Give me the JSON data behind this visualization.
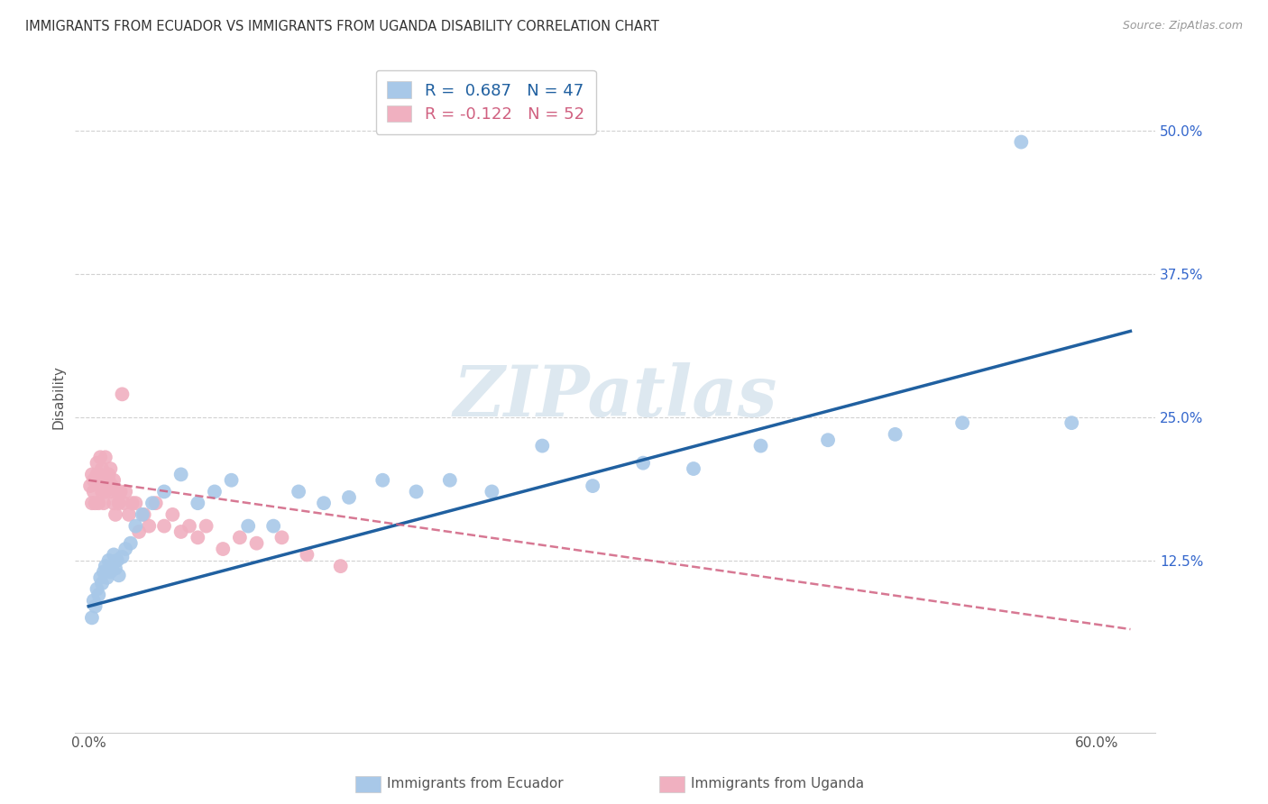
{
  "title": "IMMIGRANTS FROM ECUADOR VS IMMIGRANTS FROM UGANDA DISABILITY CORRELATION CHART",
  "source": "Source: ZipAtlas.com",
  "ylabel": "Disability",
  "x_ticks": [
    0.0,
    0.1,
    0.2,
    0.3,
    0.4,
    0.5,
    0.6
  ],
  "x_tick_labels": [
    "0.0%",
    "",
    "",
    "",
    "",
    "",
    "60.0%"
  ],
  "y_ticks": [
    0.0,
    0.125,
    0.25,
    0.375,
    0.5
  ],
  "y_tick_labels": [
    "",
    "12.5%",
    "25.0%",
    "37.5%",
    "50.0%"
  ],
  "xlim": [
    -0.008,
    0.635
  ],
  "ylim": [
    -0.025,
    0.56
  ],
  "ecuador_R": 0.687,
  "ecuador_N": 47,
  "uganda_R": -0.122,
  "uganda_N": 52,
  "ecuador_color": "#a8c8e8",
  "ecuador_line_color": "#2060a0",
  "uganda_color": "#f0b0c0",
  "uganda_line_color": "#d06080",
  "ecuador_x": [
    0.002,
    0.003,
    0.004,
    0.005,
    0.006,
    0.007,
    0.008,
    0.009,
    0.01,
    0.011,
    0.012,
    0.013,
    0.014,
    0.015,
    0.016,
    0.017,
    0.018,
    0.02,
    0.022,
    0.025,
    0.028,
    0.032,
    0.038,
    0.045,
    0.055,
    0.065,
    0.075,
    0.085,
    0.095,
    0.11,
    0.125,
    0.14,
    0.155,
    0.175,
    0.195,
    0.215,
    0.24,
    0.27,
    0.3,
    0.33,
    0.36,
    0.4,
    0.44,
    0.48,
    0.52,
    0.555,
    0.585
  ],
  "ecuador_y": [
    0.075,
    0.09,
    0.085,
    0.1,
    0.095,
    0.11,
    0.105,
    0.115,
    0.12,
    0.11,
    0.125,
    0.115,
    0.12,
    0.13,
    0.118,
    0.125,
    0.112,
    0.128,
    0.135,
    0.14,
    0.155,
    0.165,
    0.175,
    0.185,
    0.2,
    0.175,
    0.185,
    0.195,
    0.155,
    0.155,
    0.185,
    0.175,
    0.18,
    0.195,
    0.185,
    0.195,
    0.185,
    0.225,
    0.19,
    0.21,
    0.205,
    0.225,
    0.23,
    0.235,
    0.245,
    0.49,
    0.245
  ],
  "uganda_x": [
    0.001,
    0.002,
    0.002,
    0.003,
    0.003,
    0.004,
    0.005,
    0.005,
    0.006,
    0.006,
    0.007,
    0.007,
    0.008,
    0.008,
    0.009,
    0.009,
    0.01,
    0.01,
    0.011,
    0.012,
    0.012,
    0.013,
    0.013,
    0.014,
    0.015,
    0.015,
    0.016,
    0.017,
    0.018,
    0.019,
    0.02,
    0.021,
    0.022,
    0.024,
    0.026,
    0.028,
    0.03,
    0.033,
    0.036,
    0.04,
    0.045,
    0.05,
    0.055,
    0.06,
    0.065,
    0.07,
    0.08,
    0.09,
    0.1,
    0.115,
    0.13,
    0.15
  ],
  "uganda_y": [
    0.19,
    0.175,
    0.2,
    0.185,
    0.195,
    0.175,
    0.21,
    0.2,
    0.175,
    0.195,
    0.215,
    0.2,
    0.185,
    0.205,
    0.175,
    0.195,
    0.185,
    0.215,
    0.195,
    0.195,
    0.2,
    0.185,
    0.205,
    0.19,
    0.175,
    0.195,
    0.165,
    0.185,
    0.175,
    0.185,
    0.27,
    0.175,
    0.185,
    0.165,
    0.175,
    0.175,
    0.15,
    0.165,
    0.155,
    0.175,
    0.155,
    0.165,
    0.15,
    0.155,
    0.145,
    0.155,
    0.135,
    0.145,
    0.14,
    0.145,
    0.13,
    0.12
  ],
  "trend_eq_x0": 0.0,
  "trend_eq_x1": 0.62,
  "trend_eq_y0": 0.085,
  "trend_eq_y1": 0.325,
  "trend_ug_x0": 0.0,
  "trend_ug_x1": 0.62,
  "trend_ug_y0": 0.195,
  "trend_ug_y1": 0.065
}
